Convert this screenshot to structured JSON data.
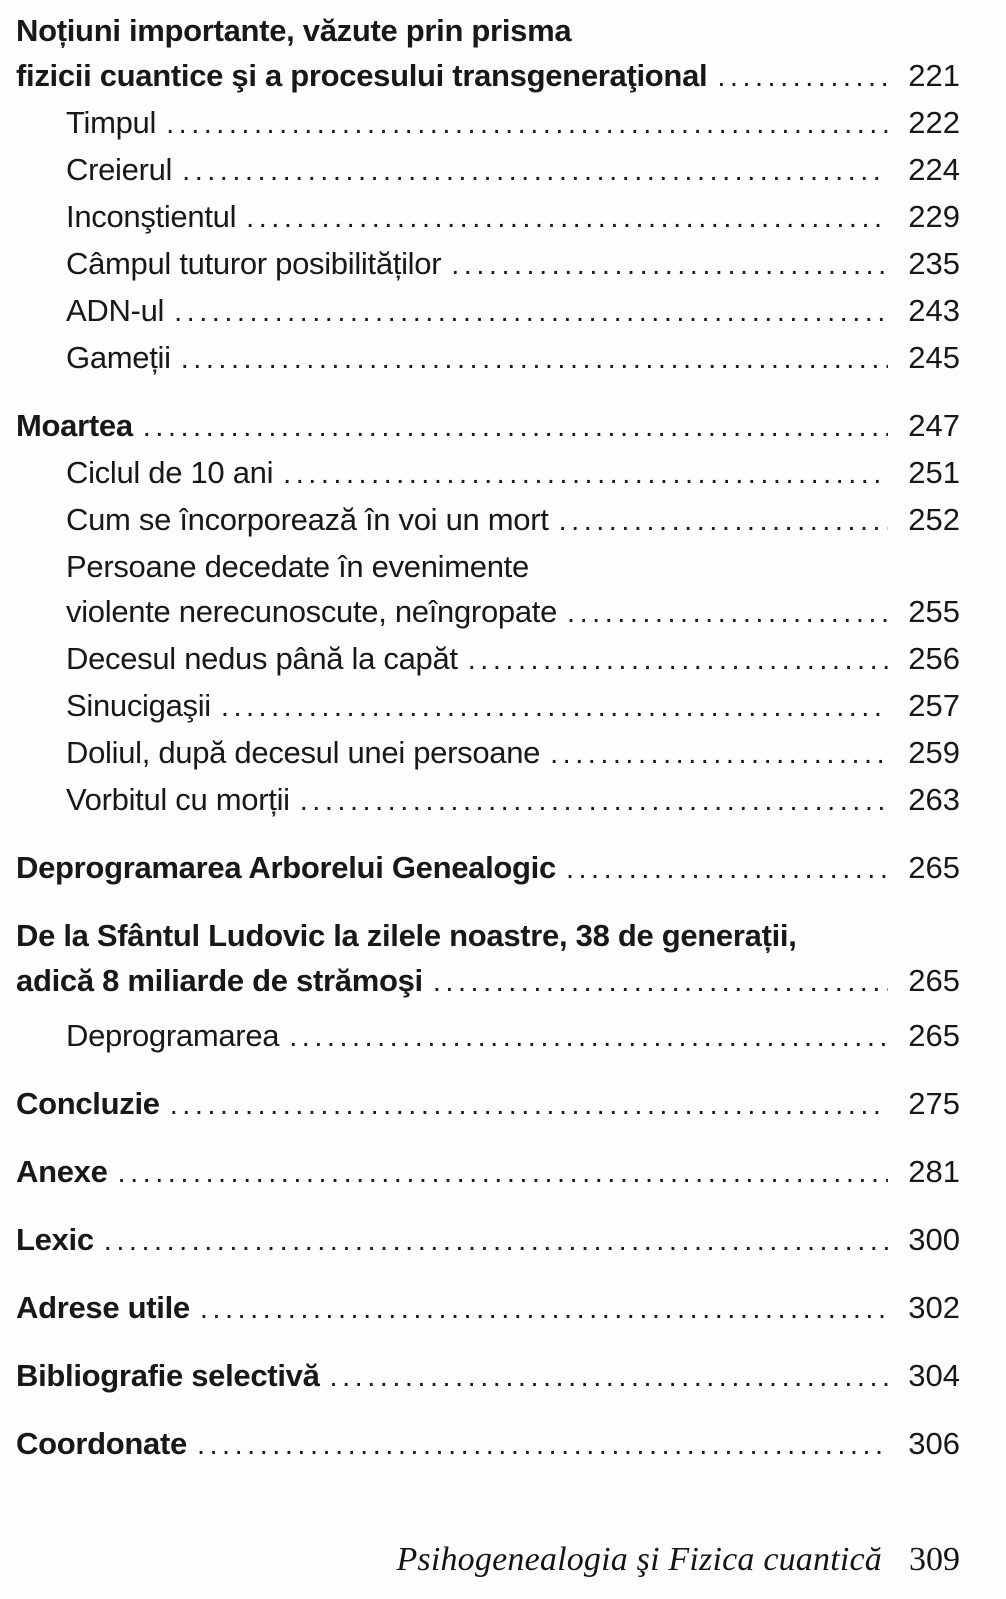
{
  "colors": {
    "background": "#fdfdfd",
    "text": "#181818"
  },
  "toc": {
    "entries": [
      {
        "lines": [
          "Noțiuni importante, văzute prin prisma",
          "fizicii cuantice şi a procesului transgeneraţional"
        ],
        "page": "221",
        "bold": true,
        "indent": 0,
        "gap": "none"
      },
      {
        "lines": [
          "Timpul"
        ],
        "page": "222",
        "bold": false,
        "indent": 1,
        "gap": "none"
      },
      {
        "lines": [
          "Creierul"
        ],
        "page": "224",
        "bold": false,
        "indent": 1,
        "gap": "none"
      },
      {
        "lines": [
          "Inconştientul"
        ],
        "page": "229",
        "bold": false,
        "indent": 1,
        "gap": "none"
      },
      {
        "lines": [
          "Câmpul tuturor posibilităților"
        ],
        "page": "235",
        "bold": false,
        "indent": 1,
        "gap": "none"
      },
      {
        "lines": [
          "ADN-ul"
        ],
        "page": "243",
        "bold": false,
        "indent": 1,
        "gap": "none"
      },
      {
        "lines": [
          "Gameții"
        ],
        "page": "245",
        "bold": false,
        "indent": 1,
        "gap": "none"
      },
      {
        "lines": [
          "Moartea"
        ],
        "page": "247",
        "bold": true,
        "indent": 0,
        "gap": "section"
      },
      {
        "lines": [
          "Ciclul de 10 ani"
        ],
        "page": "251",
        "bold": false,
        "indent": 1,
        "gap": "none"
      },
      {
        "lines": [
          "Cum se încorporează în voi un mort"
        ],
        "page": "252",
        "bold": false,
        "indent": 1,
        "gap": "none"
      },
      {
        "lines": [
          "Persoane decedate în evenimente",
          "violente nerecunoscute, neîngropate"
        ],
        "page": "255",
        "bold": false,
        "indent": 1,
        "gap": "none"
      },
      {
        "lines": [
          "Decesul nedus până la capăt"
        ],
        "page": "256",
        "bold": false,
        "indent": 1,
        "gap": "none"
      },
      {
        "lines": [
          "Sinucigaşii"
        ],
        "page": "257",
        "bold": false,
        "indent": 1,
        "gap": "none"
      },
      {
        "lines": [
          "Doliul, după decesul unei persoane"
        ],
        "page": "259",
        "bold": false,
        "indent": 1,
        "gap": "none"
      },
      {
        "lines": [
          "Vorbitul cu morții"
        ],
        "page": "263",
        "bold": false,
        "indent": 1,
        "gap": "none"
      },
      {
        "lines": [
          "Deprogramarea Arborelui Genealogic"
        ],
        "page": "265",
        "bold": true,
        "indent": 0,
        "gap": "section"
      },
      {
        "lines": [
          "De la Sfântul Ludovic la zilele noastre, 38 de generații,",
          "adică 8 miliarde de strămoşi"
        ],
        "page": "265",
        "bold": true,
        "indent": 0,
        "gap": "section"
      },
      {
        "lines": [
          "Deprogramarea"
        ],
        "page": "265",
        "bold": false,
        "indent": 1,
        "gap": "small"
      },
      {
        "lines": [
          "Concluzie"
        ],
        "page": "275",
        "bold": true,
        "indent": 0,
        "gap": "section"
      },
      {
        "lines": [
          "Anexe"
        ],
        "page": "281",
        "bold": true,
        "indent": 0,
        "gap": "section"
      },
      {
        "lines": [
          "Lexic"
        ],
        "page": "300",
        "bold": true,
        "indent": 0,
        "gap": "section"
      },
      {
        "lines": [
          "Adrese utile"
        ],
        "page": "302",
        "bold": true,
        "indent": 0,
        "gap": "section"
      },
      {
        "lines": [
          "Bibliografie selectivă"
        ],
        "page": "304",
        "bold": true,
        "indent": 0,
        "gap": "section"
      },
      {
        "lines": [
          "Coordonate"
        ],
        "page": "306",
        "bold": true,
        "indent": 0,
        "gap": "section"
      }
    ]
  },
  "footer": {
    "book_title": "Psihogenealogia şi Fizica cuantică",
    "page_number": "309"
  }
}
